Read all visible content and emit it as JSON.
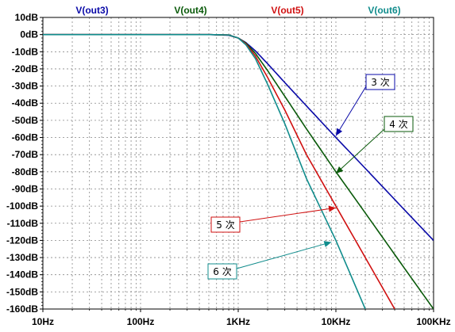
{
  "chart_data": {
    "type": "line",
    "x_scale": "log",
    "xlim": [
      10,
      100000
    ],
    "ylim": [
      -160,
      10
    ],
    "grid": true,
    "x_ticks": [
      {
        "value": 10,
        "label": "10Hz"
      },
      {
        "value": 100,
        "label": "100Hz"
      },
      {
        "value": 1000,
        "label": "1KHz"
      },
      {
        "value": 10000,
        "label": "10KHz"
      },
      {
        "value": 100000,
        "label": "100KHz"
      }
    ],
    "y_ticks": [
      {
        "value": 10,
        "label": "10dB"
      },
      {
        "value": 0,
        "label": "0dB"
      },
      {
        "value": -10,
        "label": "-10dB"
      },
      {
        "value": -20,
        "label": "-20dB"
      },
      {
        "value": -30,
        "label": "-30dB"
      },
      {
        "value": -40,
        "label": "-40dB"
      },
      {
        "value": -50,
        "label": "-50dB"
      },
      {
        "value": -60,
        "label": "-60dB"
      },
      {
        "value": -70,
        "label": "-70dB"
      },
      {
        "value": -80,
        "label": "-80dB"
      },
      {
        "value": -90,
        "label": "-90dB"
      },
      {
        "value": -100,
        "label": "-100dB"
      },
      {
        "value": -110,
        "label": "-110dB"
      },
      {
        "value": -120,
        "label": "-120dB"
      },
      {
        "value": -130,
        "label": "-130dB"
      },
      {
        "value": -140,
        "label": "-140dB"
      },
      {
        "value": -150,
        "label": "-150dB"
      },
      {
        "value": -160,
        "label": "-160dB"
      }
    ],
    "series": [
      {
        "name": "V(out3)",
        "color": "#0a0aa8",
        "x": [
          10,
          500,
          800,
          1000,
          1200,
          1500,
          2000,
          3000,
          5000,
          10000,
          20000,
          50000,
          100000
        ],
        "y": [
          0,
          0,
          -0.4,
          -2,
          -4.7,
          -9.5,
          -17,
          -28,
          -41.6,
          -60,
          -78,
          -102,
          -120
        ]
      },
      {
        "name": "V(out4)",
        "color": "#0a5a0a",
        "x": [
          10,
          500,
          800,
          1000,
          1200,
          1500,
          2000,
          3000,
          5000,
          10000,
          20000,
          50000,
          100000
        ],
        "y": [
          0,
          0,
          -0.3,
          -2,
          -5,
          -11,
          -21,
          -36,
          -55,
          -80,
          -104,
          -136,
          -160
        ]
      },
      {
        "name": "V(out5)",
        "color": "#d01010",
        "x": [
          10,
          500,
          800,
          1000,
          1200,
          1500,
          2000,
          3000,
          5000,
          10000,
          20000,
          40000
        ],
        "y": [
          0,
          0,
          -0.2,
          -2,
          -5.5,
          -12.5,
          -25,
          -44,
          -70,
          -100,
          -130,
          -160
        ]
      },
      {
        "name": "V(out6)",
        "color": "#108c8c",
        "x": [
          10,
          500,
          800,
          1000,
          1200,
          1500,
          2000,
          3000,
          5000,
          10000,
          20000
        ],
        "y": [
          0,
          0,
          -0.2,
          -2,
          -6,
          -14,
          -29,
          -52,
          -84,
          -120,
          -160
        ]
      }
    ],
    "annotations": [
      {
        "text": "3 次",
        "color": "#0a0aa8",
        "box_border": "#0a0aa8",
        "target_x": 10000,
        "target_y": -59
      },
      {
        "text": "4 次",
        "color": "#0a5a0a",
        "box_border": "#0a5a0a",
        "target_x": 10000,
        "target_y": -81
      },
      {
        "text": "5 次",
        "color": "#d01010",
        "box_border": "#d01010",
        "target_x": 10000,
        "target_y": -101
      },
      {
        "text": "6 次",
        "color": "#108c8c",
        "box_border": "#108c8c",
        "target_x": 9000,
        "target_y": -121
      }
    ]
  }
}
